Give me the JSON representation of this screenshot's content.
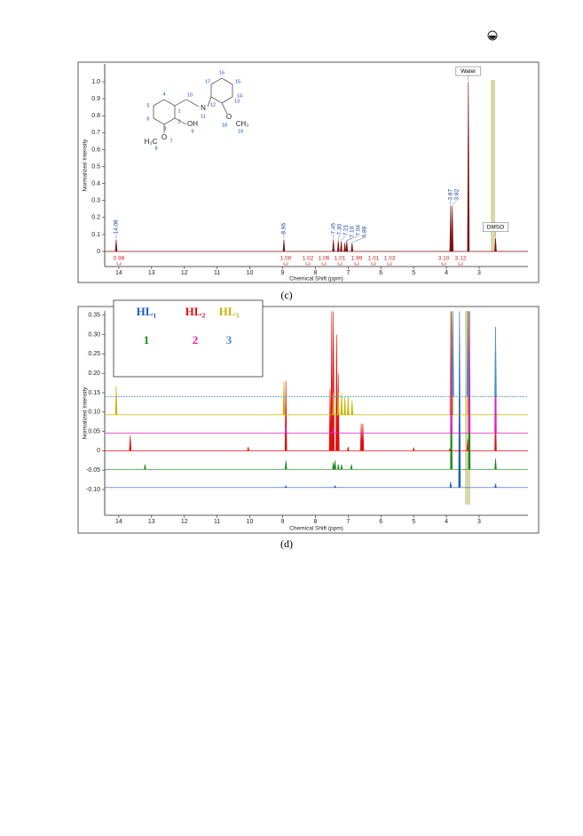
{
  "chart_data": [
    {
      "type": "spectrum",
      "x_label": "Chemical Shift (ppm)",
      "y_label": "Normalized Intensity",
      "xlim": [
        14.43,
        1.51
      ],
      "ylim": [
        -0.089,
        1.105
      ],
      "xticks": [
        14,
        13,
        12,
        11,
        10,
        9,
        8,
        7,
        6,
        5,
        4,
        3
      ],
      "yticks": [
        0,
        0.1,
        0.2,
        0.3,
        0.4,
        0.5,
        0.6,
        0.7,
        0.8,
        0.9,
        {
          "value": 1,
          "label": "1.0"
        }
      ],
      "series": [
        {
          "color": "#7a1010",
          "baseline": 0,
          "x": [
            14.08,
            8.96,
            7.45,
            7.3,
            7.21,
            7.1,
            7.04,
            6.88,
            3.87,
            3.82,
            3.33,
            2.5
          ],
          "values": [
            0.07,
            0.07,
            0.07,
            0.065,
            0.06,
            0.05,
            0.06,
            0.05,
            0.27,
            0.27,
            1.0,
            0.08
          ]
        }
      ],
      "peak_labels": [
        "14.08",
        "8.96",
        "7.45",
        "7.30",
        "7.21",
        "7.10",
        "7.04",
        "6.88",
        "3.87",
        "3.82",
        null,
        null
      ],
      "integrals": [
        "0.98",
        "1.00",
        "1.02",
        "1.06",
        "1.01",
        "1.99",
        "1.01",
        "1.03",
        "3.10",
        "3.12"
      ],
      "annotations": [
        {
          "text": "Water",
          "x": 3.33
        },
        {
          "text": "DMSO",
          "x": 2.5
        }
      ],
      "structure_labels": [
        "4",
        "5",
        "6",
        "1",
        "2",
        "3",
        "10",
        "N",
        "11",
        "12",
        "13",
        "14",
        "15",
        "16",
        "17",
        "OH",
        "9",
        "O",
        "7",
        "H₃C",
        "8",
        "O",
        "18",
        "CH₃",
        "19"
      ]
    },
    {
      "type": "spectrum",
      "x_label": "Chemical Shift (ppm)",
      "y_label": "Normalized Intensity",
      "xlim": [
        14.43,
        1.51
      ],
      "ylim": [
        -0.1665,
        0.361
      ],
      "xticks": [
        14,
        13,
        12,
        11,
        10,
        9,
        8,
        7,
        6,
        5,
        4,
        3
      ],
      "yticks": [
        {
          "value": -0.1,
          "label": "-0.10"
        },
        -0.05,
        0,
        0.05,
        {
          "value": 0.1,
          "label": "0.10"
        },
        0.15,
        {
          "value": 0.2,
          "label": "0.20"
        },
        0.25,
        {
          "value": 0.3,
          "label": "0.30"
        },
        0.35
      ],
      "legend": "upper left",
      "series": [
        {
          "name": "HL₁",
          "color": "#1f5fbf",
          "baseline": -0.095,
          "x": [
            8.9,
            7.4,
            3.87,
            3.6,
            2.5
          ],
          "values": [
            -0.09,
            -0.09,
            -0.08,
            0.36,
            -0.085
          ]
        },
        {
          "name": "HL₂",
          "color": "#e01010",
          "baseline": 0,
          "x": [
            13.65,
            10.05,
            8.9,
            7.55,
            7.5,
            7.45,
            7.35,
            7.3,
            7.0,
            6.6,
            6.55,
            5.0,
            3.9,
            3.35,
            2.5
          ],
          "values": [
            0.04,
            0.01,
            0.18,
            0.16,
            0.36,
            0.36,
            0.3,
            0.2,
            0.01,
            0.07,
            0.07,
            0.008,
            0.005,
            0.03,
            0.09
          ]
        },
        {
          "name": "HL₃",
          "color": "#c8b400",
          "baseline": 0.093,
          "x": [
            14.08,
            8.96,
            7.45,
            7.3,
            7.2,
            7.1,
            7.0,
            6.88,
            3.87,
            3.82,
            3.33,
            2.5
          ],
          "values": [
            0.167,
            0.18,
            0.15,
            0.15,
            0.15,
            0.14,
            0.14,
            0.13,
            0.36,
            0.36,
            0.36,
            0.12
          ]
        },
        {
          "name": "1",
          "color": "#1a8a1a",
          "baseline": -0.048,
          "x": [
            13.2,
            8.9,
            7.45,
            7.4,
            7.3,
            7.2,
            6.9,
            3.85,
            3.3,
            2.5
          ],
          "values": [
            -0.035,
            -0.025,
            -0.03,
            -0.025,
            -0.035,
            -0.035,
            -0.035,
            0.36,
            0.36,
            -0.02
          ]
        },
        {
          "name": "2",
          "color": "#e020c0",
          "baseline": 0.046,
          "x": [
            8.9,
            7.45,
            3.85,
            3.3,
            2.5
          ],
          "values": [
            0.06,
            0.06,
            0.36,
            0.36,
            0.32
          ]
        },
        {
          "name": "3",
          "color": "#4a90c0",
          "baseline": 0.14,
          "x": [
            3.8,
            3.35,
            2.5
          ],
          "values": [
            0.36,
            0.36,
            0.32
          ]
        }
      ]
    }
  ],
  "captions": [
    "(c)",
    "(d)"
  ]
}
